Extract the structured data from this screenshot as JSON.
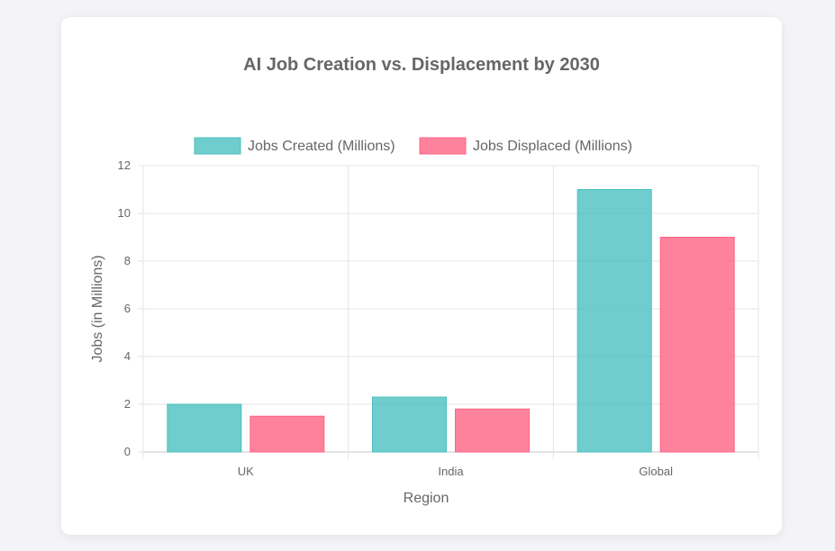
{
  "chart_data": {
    "type": "bar",
    "title": "AI Job Creation vs. Displacement by 2030",
    "xlabel": "Region",
    "ylabel": "Jobs (in Millions)",
    "ylim": [
      0,
      12
    ],
    "yticks": [
      "0",
      "2",
      "4",
      "6",
      "8",
      "10",
      "12"
    ],
    "categories": [
      "UK",
      "India",
      "Global"
    ],
    "legend_position": "top",
    "grid": true,
    "series": [
      {
        "name": "Jobs Created (Millions)",
        "values": [
          2,
          2.3,
          11
        ],
        "color": "#4bc0c0"
      },
      {
        "name": "Jobs Displaced (Millions)",
        "values": [
          1.5,
          1.8,
          9
        ],
        "color": "#ff6384"
      }
    ]
  }
}
